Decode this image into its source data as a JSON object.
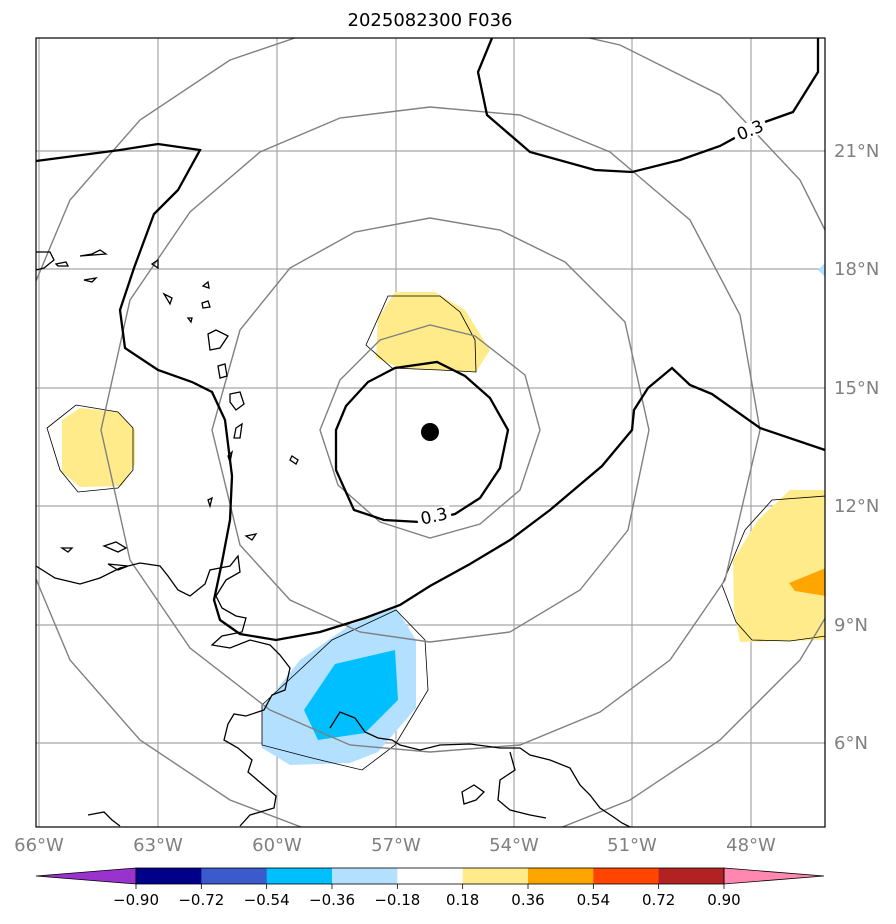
{
  "title": "2025082300 F036",
  "map": {
    "projection": "azimuthal, centered on storm",
    "lon_range": [
      -66,
      -46.8
    ],
    "lat_range": [
      3.8,
      23
    ],
    "storm_center": {
      "lon": -56.3,
      "lat": 13.8
    },
    "range_rings": 4,
    "gridlines": true,
    "contour_level_label": "0.3",
    "fill_field_colors": {
      "pale_yellow": "#ffeb8a",
      "orange": "#ffa500",
      "light_blue": "#b3e0ff",
      "blue": "#00bfff"
    }
  },
  "lon_ticks": [
    "66°W",
    "63°W",
    "60°W",
    "57°W",
    "54°W",
    "51°W",
    "48°W"
  ],
  "lat_ticks": [
    "21°N",
    "18°N",
    "15°N",
    "12°N",
    "9°N",
    "6°N"
  ],
  "colorbar": {
    "orientation": "horizontal",
    "extend": "both",
    "labels": [
      "−0.90",
      "−0.72",
      "−0.54",
      "−0.36",
      "−0.18",
      "0.18",
      "0.36",
      "0.54",
      "0.72",
      "0.90"
    ],
    "under_color": "#9a32cd",
    "over_color": "#ff88b0",
    "colors": [
      "#000088",
      "#3b5bcd",
      "#00bfff",
      "#b3e0ff",
      "#ffffff",
      "#ffeb8a",
      "#ffa500",
      "#ff4500",
      "#b22222"
    ]
  }
}
